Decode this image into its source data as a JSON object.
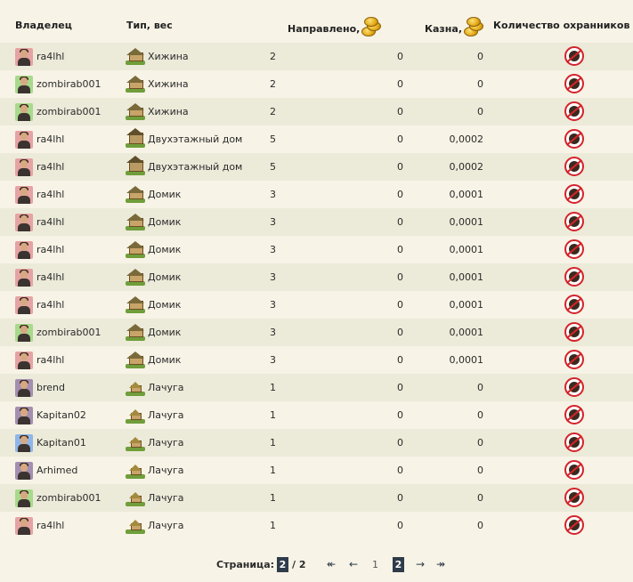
{
  "header": {
    "owner": "Владелец",
    "type": "Тип, вес",
    "sent": "Направлено,",
    "treasury": "Казна,",
    "guards": "Количество охранников"
  },
  "rows": [
    {
      "owner": "ra4lhl",
      "avatar": "red",
      "type": "Хижина",
      "house": "hut",
      "weight": "2",
      "sent": "0",
      "treasury": "0"
    },
    {
      "owner": "zombirab001",
      "avatar": "green",
      "type": "Хижина",
      "house": "hut",
      "weight": "2",
      "sent": "0",
      "treasury": "0"
    },
    {
      "owner": "zombirab001",
      "avatar": "green",
      "type": "Хижина",
      "house": "hut",
      "weight": "2",
      "sent": "0",
      "treasury": "0"
    },
    {
      "owner": "ra4lhl",
      "avatar": "red",
      "type": "Двухэтажный дом",
      "house": "big",
      "weight": "5",
      "sent": "0",
      "treasury": "0,0002"
    },
    {
      "owner": "ra4lhl",
      "avatar": "red",
      "type": "Двухэтажный дом",
      "house": "big",
      "weight": "5",
      "sent": "0",
      "treasury": "0,0002"
    },
    {
      "owner": "ra4lhl",
      "avatar": "red",
      "type": "Домик",
      "house": "cottage",
      "weight": "3",
      "sent": "0",
      "treasury": "0,0001"
    },
    {
      "owner": "ra4lhl",
      "avatar": "red",
      "type": "Домик",
      "house": "cottage",
      "weight": "3",
      "sent": "0",
      "treasury": "0,0001"
    },
    {
      "owner": "ra4lhl",
      "avatar": "red",
      "type": "Домик",
      "house": "cottage",
      "weight": "3",
      "sent": "0",
      "treasury": "0,0001"
    },
    {
      "owner": "ra4lhl",
      "avatar": "red",
      "type": "Домик",
      "house": "cottage",
      "weight": "3",
      "sent": "0",
      "treasury": "0,0001"
    },
    {
      "owner": "ra4lhl",
      "avatar": "red",
      "type": "Домик",
      "house": "cottage",
      "weight": "3",
      "sent": "0",
      "treasury": "0,0001"
    },
    {
      "owner": "zombirab001",
      "avatar": "green",
      "type": "Домик",
      "house": "cottage",
      "weight": "3",
      "sent": "0",
      "treasury": "0,0001"
    },
    {
      "owner": "ra4lhl",
      "avatar": "red",
      "type": "Домик",
      "house": "cottage",
      "weight": "3",
      "sent": "0",
      "treasury": "0,0001"
    },
    {
      "owner": "brend",
      "avatar": "purple",
      "type": "Лачуга",
      "house": "small",
      "weight": "1",
      "sent": "0",
      "treasury": "0"
    },
    {
      "owner": "Kapitan02",
      "avatar": "purple",
      "type": "Лачуга",
      "house": "small",
      "weight": "1",
      "sent": "0",
      "treasury": "0"
    },
    {
      "owner": "Kapitan01",
      "avatar": "blue",
      "type": "Лачуга",
      "house": "small",
      "weight": "1",
      "sent": "0",
      "treasury": "0"
    },
    {
      "owner": "Arhimed",
      "avatar": "purple",
      "type": "Лачуга",
      "house": "small",
      "weight": "1",
      "sent": "0",
      "treasury": "0"
    },
    {
      "owner": "zombirab001",
      "avatar": "green",
      "type": "Лачуга",
      "house": "small",
      "weight": "1",
      "sent": "0",
      "treasury": "0"
    },
    {
      "owner": "ra4lhl",
      "avatar": "red",
      "type": "Лачуга",
      "house": "small",
      "weight": "1",
      "sent": "0",
      "treasury": "0"
    }
  ],
  "pager": {
    "label": "Страница:",
    "current": "2",
    "separator": "/ 2",
    "first": "↞",
    "prev": "←",
    "page1": "1",
    "page2": "2",
    "next": "→",
    "last": "↠"
  },
  "icons": {
    "coin": "coin-stack-icon",
    "guard": "guard-shield-icon"
  }
}
